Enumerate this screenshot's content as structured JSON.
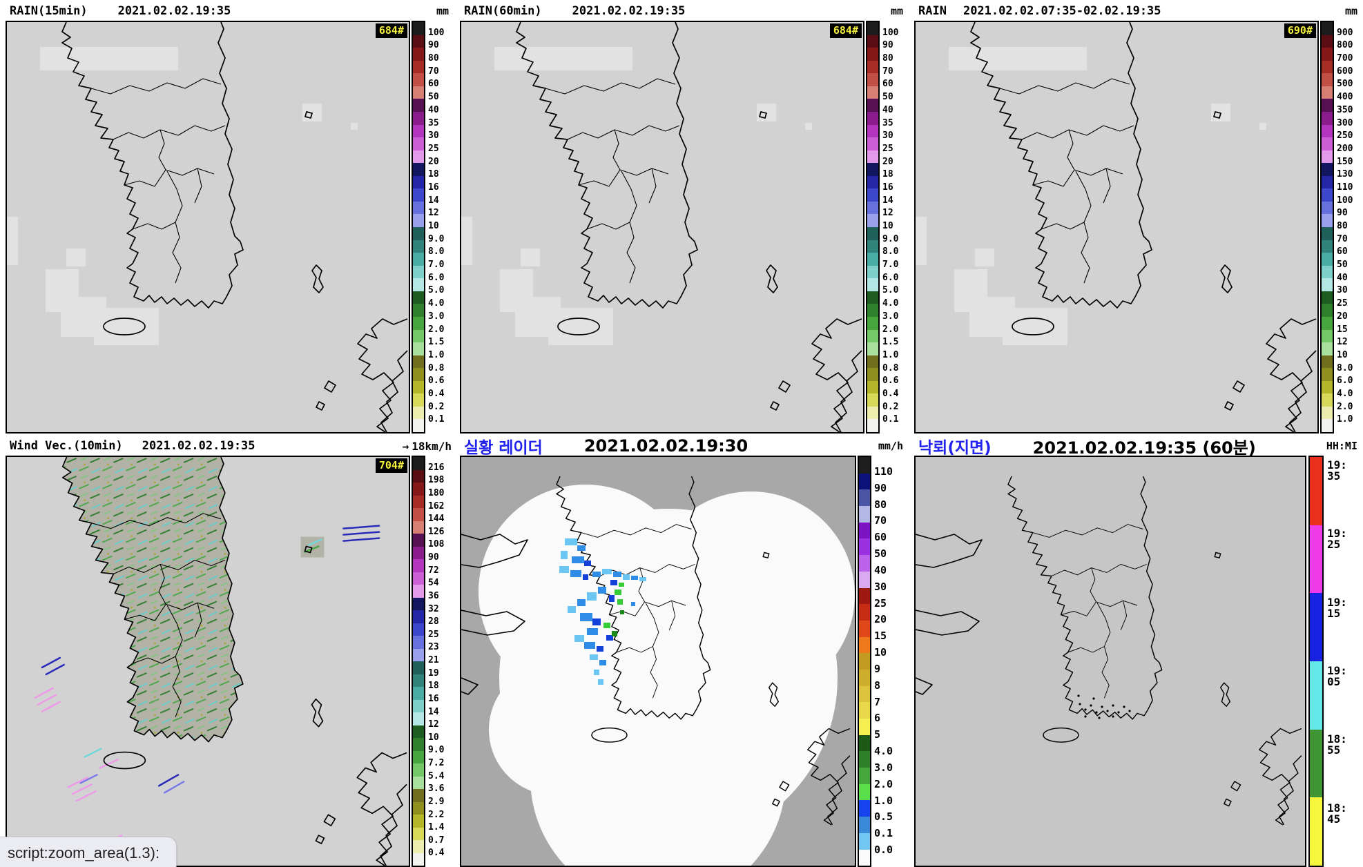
{
  "status_bar": {
    "text": "script:zoom_area(1.3):"
  },
  "panels": [
    {
      "name": "rain-15min",
      "title": "RAIN(15min)",
      "timestamp": "2021.02.02.19:35",
      "unit": "mm",
      "badge": "684#",
      "scale": {
        "align": "boundary",
        "colors": [
          "#1c1c1c",
          "#5a0e14",
          "#87181a",
          "#a62c26",
          "#c14f46",
          "#d87f74",
          "#571052",
          "#8a1c8c",
          "#b436be",
          "#cc5fd6",
          "#e49aea",
          "#12175f",
          "#2327a6",
          "#3d47cc",
          "#6671de",
          "#99a0ee",
          "#20605b",
          "#2f837b",
          "#49ada6",
          "#7ed0cb",
          "#b3e8e5",
          "#1d5c20",
          "#2f7f2c",
          "#47a63e",
          "#74c868",
          "#a8df9d",
          "#6e6e1c",
          "#8f8f1f",
          "#b5b529",
          "#d8d85a",
          "#ecedae",
          "#f2f2ee"
        ],
        "labels": [
          "100",
          "90",
          "80",
          "70",
          "60",
          "50",
          "40",
          "35",
          "30",
          "25",
          "20",
          "18",
          "16",
          "14",
          "12",
          "10",
          "9.0",
          "8.0",
          "7.0",
          "6.0",
          "5.0",
          "4.0",
          "3.0",
          "2.0",
          "1.5",
          "1.0",
          "0.8",
          "0.6",
          "0.4",
          "0.2",
          "0.1"
        ]
      }
    },
    {
      "name": "rain-60min",
      "title": "RAIN(60min)",
      "timestamp": "2021.02.02.19:35",
      "unit": "mm",
      "badge": "684#",
      "scale": {
        "align": "boundary",
        "colors": [
          "#1c1c1c",
          "#5a0e14",
          "#87181a",
          "#a62c26",
          "#c14f46",
          "#d87f74",
          "#571052",
          "#8a1c8c",
          "#b436be",
          "#cc5fd6",
          "#e49aea",
          "#12175f",
          "#2327a6",
          "#3d47cc",
          "#6671de",
          "#99a0ee",
          "#20605b",
          "#2f837b",
          "#49ada6",
          "#7ed0cb",
          "#b3e8e5",
          "#1d5c20",
          "#2f7f2c",
          "#47a63e",
          "#74c868",
          "#a8df9d",
          "#6e6e1c",
          "#8f8f1f",
          "#b5b529",
          "#d8d85a",
          "#ecedae",
          "#f2f2ee"
        ],
        "labels": [
          "100",
          "90",
          "80",
          "70",
          "60",
          "50",
          "40",
          "35",
          "30",
          "25",
          "20",
          "18",
          "16",
          "14",
          "12",
          "10",
          "9.0",
          "8.0",
          "7.0",
          "6.0",
          "5.0",
          "4.0",
          "3.0",
          "2.0",
          "1.5",
          "1.0",
          "0.8",
          "0.6",
          "0.4",
          "0.2",
          "0.1"
        ]
      }
    },
    {
      "name": "rain-accumulated",
      "title": "RAIN",
      "timestamp": "2021.02.02.07:35-02.02.19:35",
      "unit": "mm",
      "badge": "690#",
      "scale": {
        "align": "boundary",
        "colors": [
          "#1c1c1c",
          "#5a0e14",
          "#87181a",
          "#a62c26",
          "#c14f46",
          "#d87f74",
          "#571052",
          "#8a1c8c",
          "#b436be",
          "#cc5fd6",
          "#e49aea",
          "#12175f",
          "#2327a6",
          "#3d47cc",
          "#6671de",
          "#99a0ee",
          "#20605b",
          "#2f837b",
          "#49ada6",
          "#7ed0cb",
          "#b3e8e5",
          "#1d5c20",
          "#2f7f2c",
          "#47a63e",
          "#74c868",
          "#a8df9d",
          "#6e6e1c",
          "#8f8f1f",
          "#b5b529",
          "#d8d85a",
          "#ecedae",
          "#f2f2ee"
        ],
        "labels": [
          "900",
          "800",
          "700",
          "600",
          "500",
          "400",
          "350",
          "300",
          "250",
          "200",
          "150",
          "130",
          "110",
          "100",
          "90",
          "80",
          "70",
          "60",
          "50",
          "40",
          "30",
          "25",
          "20",
          "15",
          "12",
          "10",
          "8.0",
          "6.0",
          "4.0",
          "2.0",
          "1.0"
        ]
      }
    },
    {
      "name": "wind-vector",
      "title": "Wind Vec.(10min)",
      "timestamp": "2021.02.02.19:35",
      "legend_arrow": "→",
      "legend_label": "18km/h",
      "badge": "704#",
      "scale": {
        "align": "boundary",
        "colors": [
          "#1c1c1c",
          "#5a0e14",
          "#87181a",
          "#a62c26",
          "#c14f46",
          "#d87f74",
          "#571052",
          "#8a1c8c",
          "#b436be",
          "#cc5fd6",
          "#e49aea",
          "#12175f",
          "#2327a6",
          "#3d47cc",
          "#6671de",
          "#99a0ee",
          "#20605b",
          "#2f837b",
          "#49ada6",
          "#7ed0cb",
          "#b3e8e5",
          "#1d5c20",
          "#2f7f2c",
          "#47a63e",
          "#74c868",
          "#a8df9d",
          "#6e6e1c",
          "#8f8f1f",
          "#b5b529",
          "#d8d85a",
          "#ecedae",
          "#f2f2ee"
        ],
        "labels": [
          "216",
          "198",
          "180",
          "162",
          "144",
          "126",
          "108",
          "90",
          "72",
          "54",
          "36",
          "32",
          "28",
          "25",
          "23",
          "21",
          "19",
          "18",
          "16",
          "14",
          "12",
          "10",
          "9.0",
          "7.2",
          "5.4",
          "3.6",
          "2.9",
          "2.2",
          "1.4",
          "0.7",
          "0.4"
        ]
      }
    },
    {
      "name": "live-radar",
      "title": "실황 레이더",
      "timestamp": "2021.02.02.19:30",
      "unit": "mm/h",
      "scale": {
        "align": "boundary",
        "colors": [
          "#1e1e1e",
          "#0c1278",
          "#4a55a5",
          "#b3b7e6",
          "#7d14c4",
          "#9b30e0",
          "#bb64ea",
          "#d9aaf2",
          "#9e1a10",
          "#c62d12",
          "#e0481a",
          "#ef7a1e",
          "#c39b22",
          "#cfae2e",
          "#ddc43c",
          "#e9d84a",
          "#f5ef52",
          "#1c5a16",
          "#2f7f28",
          "#46a83a",
          "#5ade4a",
          "#1743ee",
          "#3a8ad8",
          "#72c8f2",
          "#fbfbfb"
        ],
        "labels": [
          "110",
          "90",
          "80",
          "70",
          "60",
          "50",
          "40",
          "30",
          "25",
          "20",
          "15",
          "10",
          "9",
          "8",
          "7",
          "6",
          "5",
          "4.0",
          "3.0",
          "2.0",
          "1.0",
          "0.5",
          "0.1",
          "0.0"
        ]
      }
    },
    {
      "name": "lightning-ground",
      "title": "낙뢰(지면)",
      "timestamp": "2021.02.02.19:35 (60분)",
      "unit": "HH:MI",
      "scale": {
        "align": "top",
        "colors": [
          "#e8301c",
          "#ee3ae8",
          "#1722e0",
          "#64e8e8",
          "#3f9434",
          "#f6f63e"
        ],
        "labels": [
          "19:\n35",
          "19:\n25",
          "19:\n15",
          "19:\n05",
          "18:\n55",
          "18:\n45"
        ]
      }
    }
  ]
}
